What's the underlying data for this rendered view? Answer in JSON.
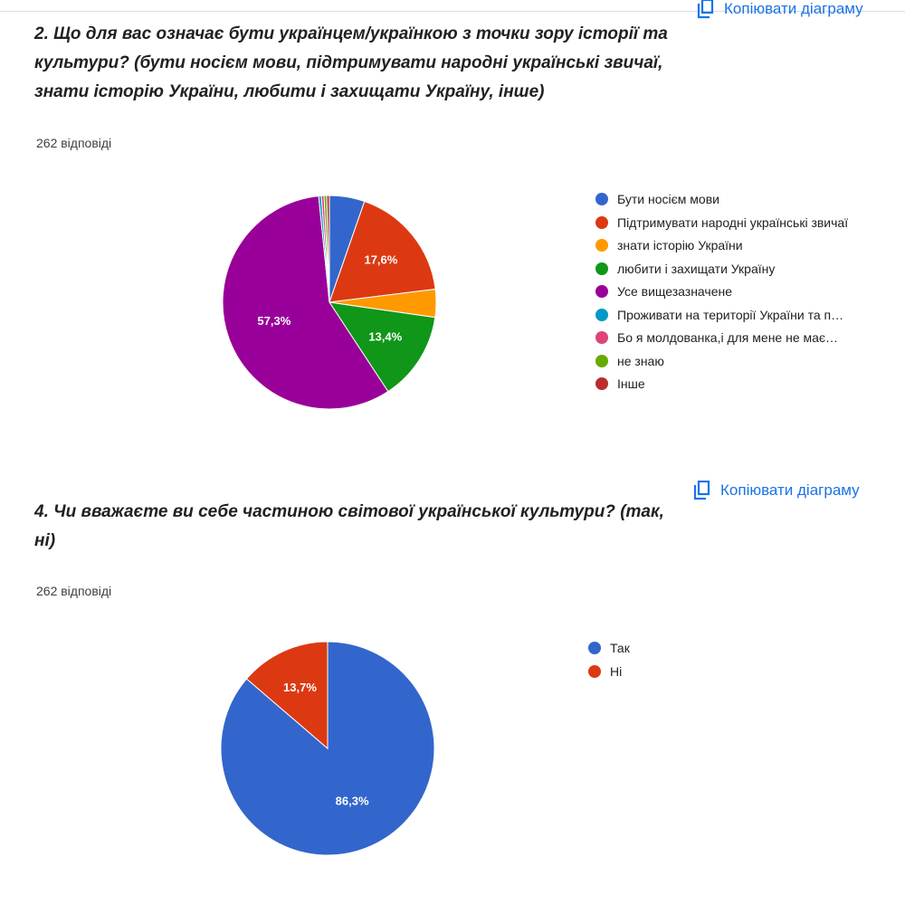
{
  "copy_chart_label": "Копіювати діаграму",
  "q1": {
    "title": "2. Що для вас означає бути українцем/українкою з точки зору історії та культури? (бути носієм мови, підтримувати народні українські звичаї, знати історію України, любити і захищати Україну, інше)",
    "responses": "262 відповіді"
  },
  "q2": {
    "title": "4. Чи вважаєте ви себе частиною світової української культури? (так, ні)",
    "responses": "262 відповіді"
  },
  "chart_data": [
    {
      "type": "pie",
      "title": "",
      "categories": [
        "Бути носієм мови",
        "Підтримувати народні українські звичаї",
        "знати історію України",
        "любити і захищати Україну",
        "Усе вищезазначене",
        "Проживати на території України та п…",
        "Бо я молдованка,і для мене не має…",
        "не знаю",
        "Інше"
      ],
      "values": [
        5.3,
        17.6,
        4.2,
        13.4,
        57.3,
        0.4,
        0.4,
        0.4,
        0.4
      ],
      "labels": [
        "",
        "17,6%",
        "",
        "13,4%",
        "57,3%",
        "",
        "",
        "",
        ""
      ],
      "colors": [
        "#3366cc",
        "#dc3912",
        "#ff9900",
        "#109618",
        "#990099",
        "#0099c6",
        "#dd4477",
        "#66aa00",
        "#b82e2e"
      ],
      "legend_position": "right"
    },
    {
      "type": "pie",
      "title": "",
      "categories": [
        "Так",
        "Ні"
      ],
      "values": [
        86.3,
        13.7
      ],
      "labels": [
        "86,3%",
        "13,7%"
      ],
      "colors": [
        "#3366cc",
        "#dc3912"
      ],
      "legend_position": "right"
    }
  ]
}
